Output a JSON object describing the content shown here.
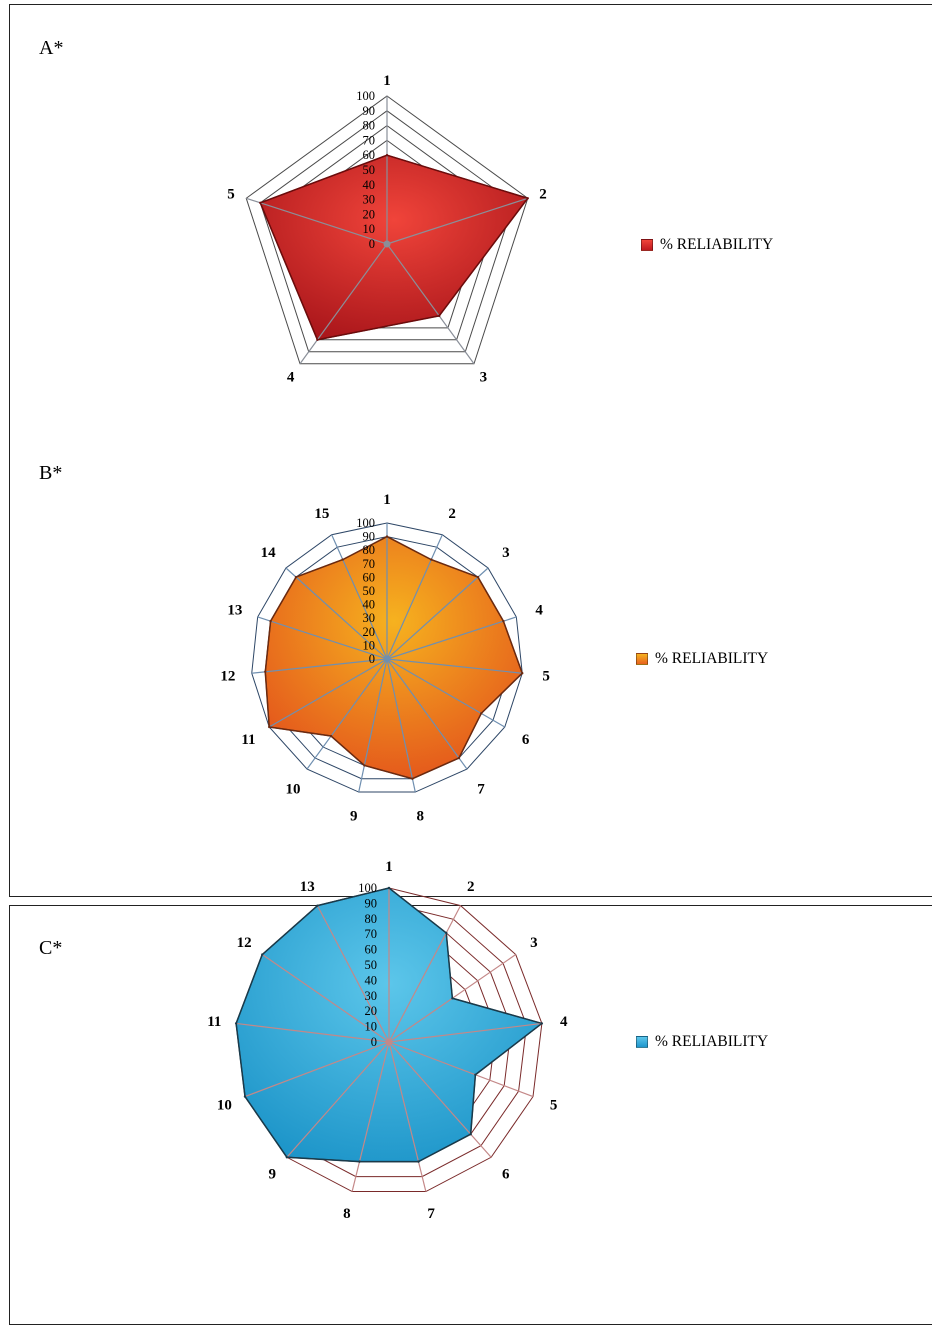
{
  "chart_data": [
    {
      "type": "radar",
      "panel_label": "A*",
      "categories": [
        "1",
        "2",
        "3",
        "4",
        "5"
      ],
      "series": [
        {
          "name": "% RELIABILITY",
          "values": [
            60,
            100,
            60,
            80,
            90
          ]
        }
      ],
      "rlim": [
        0,
        100
      ],
      "ticks": [
        "0",
        "10",
        "20",
        "30",
        "40",
        "50",
        "60",
        "70",
        "80",
        "90",
        "100"
      ],
      "legend": "right",
      "colors": {
        "fill_light": "#f0443a",
        "fill_dark": "#a8151a",
        "stroke": "#6b0c0c",
        "grid": "#4a4a4a",
        "spoke": "#8a8f99",
        "swatch": "#c0191f"
      }
    },
    {
      "type": "radar",
      "panel_label": "B*",
      "categories": [
        "1",
        "2",
        "3",
        "4",
        "5",
        "6",
        "7",
        "8",
        "9",
        "10",
        "11",
        "12",
        "13",
        "14",
        "15"
      ],
      "series": [
        {
          "name": "% RELIABILITY",
          "values": [
            90,
            80,
            90,
            90,
            100,
            80,
            90,
            90,
            80,
            70,
            100,
            90,
            90,
            90,
            80
          ]
        }
      ],
      "rlim": [
        0,
        100
      ],
      "ticks": [
        "0",
        "10",
        "20",
        "30",
        "40",
        "50",
        "60",
        "70",
        "80",
        "90",
        "100"
      ],
      "legend": "right",
      "colors": {
        "fill_light": "#f6b21f",
        "fill_dark": "#e3531c",
        "stroke": "#6b2a10",
        "grid": "#2d4666",
        "spoke": "#6f8fb0",
        "swatch": "#e8621f"
      }
    },
    {
      "type": "radar",
      "panel_label": "C*",
      "categories": [
        "1",
        "2",
        "3",
        "4",
        "5",
        "6",
        "7",
        "8",
        "9",
        "10",
        "11",
        "12",
        "13"
      ],
      "series": [
        {
          "name": "% RELIABILITY",
          "values": [
            100,
            80,
            50,
            100,
            60,
            80,
            80,
            80,
            100,
            100,
            100,
            100,
            100
          ]
        }
      ],
      "rlim": [
        0,
        100
      ],
      "ticks": [
        "0",
        "10",
        "20",
        "30",
        "40",
        "50",
        "60",
        "70",
        "80",
        "90",
        "100"
      ],
      "legend": "right",
      "colors": {
        "fill_light": "#5cc6ea",
        "fill_dark": "#1d95c9",
        "stroke": "#1a3a4a",
        "grid": "#7a2a2a",
        "spoke": "#c48888",
        "swatch": "#1f96cc"
      }
    }
  ]
}
